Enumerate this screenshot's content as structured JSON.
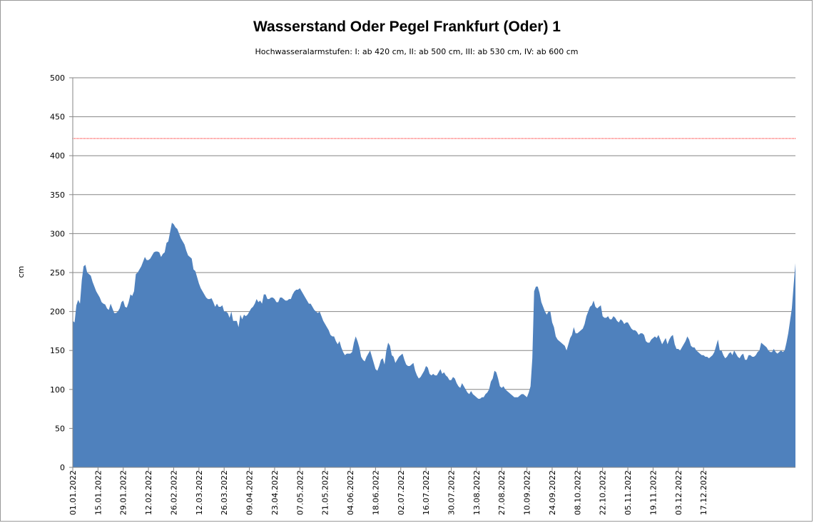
{
  "chart_data": {
    "type": "area",
    "title": "Wasserstand Oder Pegel Frankfurt (Oder) 1",
    "subtitle": "Hochwasseralarmstufen: I: ab 420 cm, II: ab 500 cm, III: ab 530 cm,  IV: ab 600 cm",
    "xlabel": "",
    "ylabel": "cm",
    "ylim": [
      0,
      500
    ],
    "yticks": [
      0,
      50,
      100,
      150,
      200,
      250,
      300,
      350,
      400,
      450,
      500
    ],
    "xticks": [
      "01.01.2022",
      "15.01.2022",
      "29.01.2022",
      "12.02.2022",
      "26.02.2022",
      "12.03.2022",
      "26.03.2022",
      "09.04.2022",
      "23.04.2022",
      "07.05.2022",
      "21.05.2022",
      "04.06.2022",
      "18.06.2022",
      "02.07.2022",
      "16.07.2022",
      "30.07.2022",
      "13.08.2022",
      "27.08.2022",
      "10.09.2022",
      "24.09.2022",
      "08.10.2022",
      "22.10.2022",
      "05.11.2022",
      "19.11.2022",
      "03.12.2022",
      "17.12.2022"
    ],
    "grid": true,
    "threshold_line": {
      "value": 422,
      "color": "#ff0000"
    },
    "fill_color": "#4f81bd",
    "series": [
      {
        "x_start": "01.01.2022",
        "step_days": 1,
        "values": [
          188,
          186,
          208,
          215,
          210,
          240,
          258,
          260,
          250,
          248,
          246,
          238,
          232,
          226,
          222,
          218,
          212,
          210,
          209,
          204,
          202,
          210,
          204,
          198,
          198,
          200,
          204,
          212,
          214,
          206,
          205,
          212,
          222,
          220,
          226,
          248,
          250,
          254,
          258,
          264,
          270,
          266,
          266,
          268,
          272,
          276,
          277,
          277,
          276,
          270,
          274,
          276,
          288,
          290,
          302,
          314,
          312,
          308,
          306,
          300,
          294,
          290,
          286,
          278,
          272,
          270,
          268,
          254,
          252,
          244,
          236,
          230,
          226,
          222,
          218,
          216,
          216,
          217,
          212,
          206,
          210,
          206,
          206,
          208,
          200,
          200,
          198,
          192,
          200,
          188,
          188,
          188,
          180,
          196,
          190,
          196,
          194,
          196,
          200,
          204,
          206,
          210,
          216,
          212,
          214,
          210,
          222,
          222,
          216,
          216,
          218,
          218,
          216,
          212,
          212,
          218,
          218,
          216,
          214,
          214,
          216,
          216,
          222,
          226,
          228,
          228,
          230,
          226,
          222,
          218,
          214,
          210,
          210,
          206,
          202,
          200,
          198,
          200,
          194,
          188,
          184,
          180,
          176,
          170,
          168,
          168,
          162,
          158,
          162,
          154,
          148,
          144,
          146,
          146,
          146,
          148,
          160,
          168,
          162,
          154,
          142,
          138,
          136,
          142,
          146,
          150,
          142,
          134,
          126,
          124,
          130,
          138,
          140,
          132,
          150,
          160,
          156,
          144,
          142,
          134,
          138,
          142,
          144,
          146,
          138,
          132,
          130,
          130,
          132,
          134,
          124,
          118,
          114,
          116,
          120,
          124,
          130,
          128,
          120,
          118,
          120,
          118,
          118,
          122,
          126,
          120,
          122,
          118,
          116,
          112,
          112,
          116,
          114,
          108,
          104,
          102,
          108,
          104,
          100,
          96,
          94,
          98,
          94,
          92,
          90,
          88,
          88,
          90,
          90,
          94,
          96,
          100,
          110,
          114,
          124,
          122,
          114,
          104,
          102,
          104,
          100,
          98,
          96,
          94,
          92,
          90,
          90,
          90,
          92,
          94,
          94,
          92,
          90,
          96,
          104,
          140,
          226,
          232,
          232,
          224,
          212,
          206,
          200,
          196,
          200,
          200,
          186,
          180,
          168,
          164,
          162,
          160,
          158,
          156,
          150,
          158,
          166,
          170,
          180,
          172,
          172,
          174,
          176,
          178,
          184,
          194,
          200,
          206,
          208,
          214,
          206,
          204,
          206,
          208,
          194,
          192,
          192,
          194,
          190,
          190,
          194,
          192,
          188,
          186,
          190,
          188,
          184,
          186,
          186,
          182,
          178,
          176,
          176,
          174,
          170,
          172,
          172,
          170,
          162,
          160,
          160,
          164,
          166,
          168,
          166,
          170,
          164,
          158,
          162,
          166,
          158,
          164,
          168,
          170,
          158,
          152,
          152,
          150,
          154,
          158,
          162,
          168,
          164,
          156,
          154,
          154,
          150,
          148,
          146,
          144,
          144,
          142,
          142,
          140,
          142,
          144,
          148,
          156,
          164,
          150,
          150,
          144,
          140,
          142,
          146,
          148,
          144,
          150,
          146,
          142,
          140,
          144,
          146,
          138,
          138,
          144,
          144,
          142,
          142,
          144,
          148,
          150,
          160,
          158,
          156,
          154,
          150,
          148,
          148,
          152,
          148,
          146,
          148,
          150,
          148,
          150,
          160,
          172,
          188,
          204,
          234,
          262
        ]
      }
    ]
  }
}
